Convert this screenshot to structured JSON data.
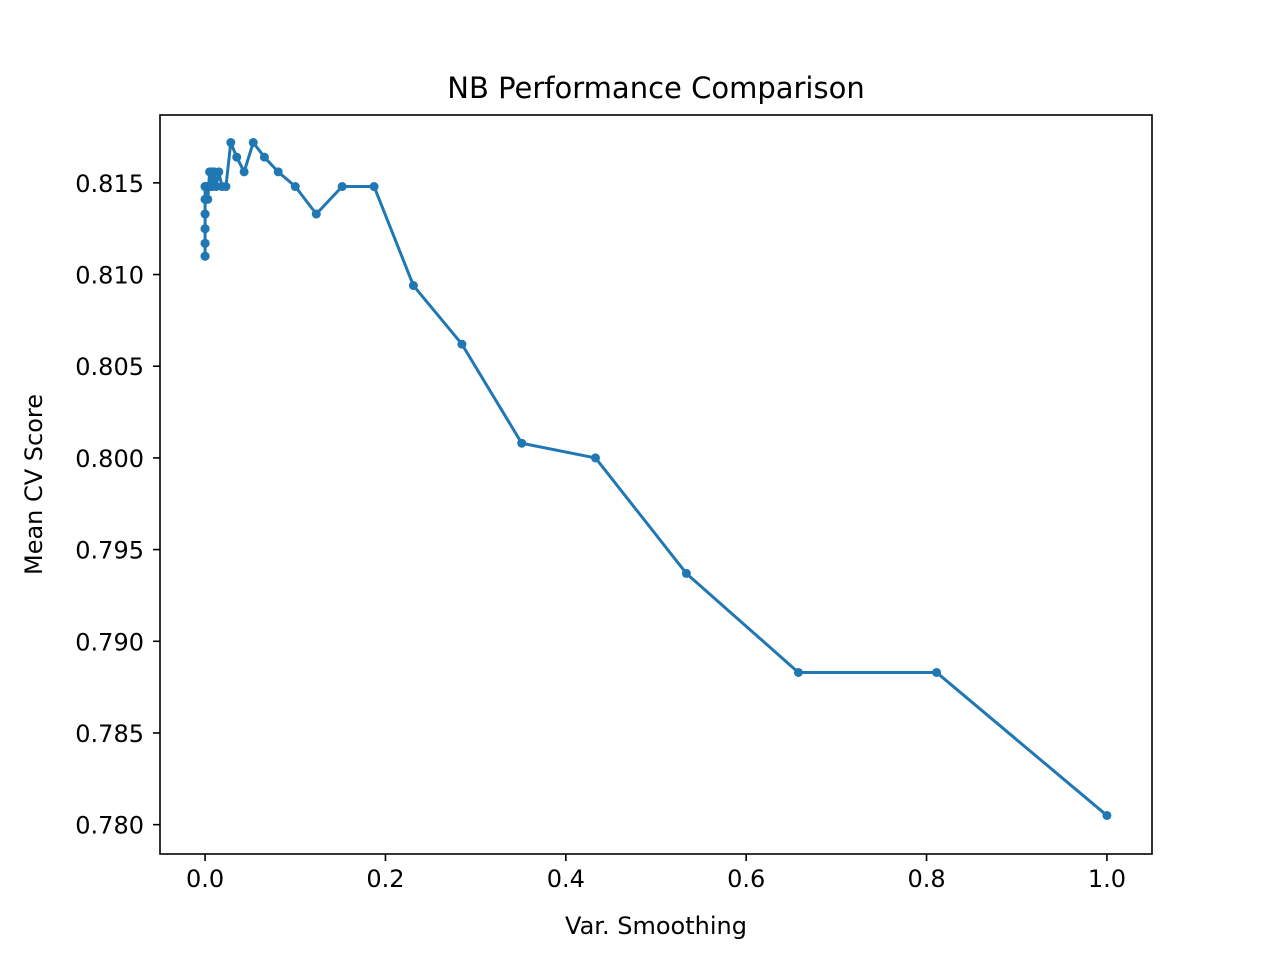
{
  "chart_data": {
    "type": "line",
    "title": "NB Performance Comparison",
    "xlabel": "Var. Smoothing",
    "ylabel": "Mean CV Score",
    "xlim": [
      -0.05,
      1.05
    ],
    "ylim": [
      0.7784,
      0.8187
    ],
    "xticks": [
      0.0,
      0.2,
      0.4,
      0.6,
      0.8,
      1.0
    ],
    "xtick_labels": [
      "0.0",
      "0.2",
      "0.4",
      "0.6",
      "0.8",
      "1.0"
    ],
    "yticks": [
      0.78,
      0.785,
      0.79,
      0.795,
      0.8,
      0.805,
      0.81,
      0.815
    ],
    "ytick_labels": [
      "0.780",
      "0.785",
      "0.790",
      "0.795",
      "0.800",
      "0.805",
      "0.810",
      "0.815"
    ],
    "grid": false,
    "legend": "none",
    "color": "#1f77b4",
    "series": [
      {
        "x": [
          0.0,
          0.0,
          0.0,
          0.0,
          0.0,
          0.0,
          0.0,
          0.0,
          0.0,
          0.0,
          0.0,
          0.0,
          0.001,
          0.0015,
          0.002,
          0.003,
          0.004,
          0.005,
          0.006,
          0.007,
          0.008,
          0.01,
          0.0123,
          0.0152,
          0.0187,
          0.0231,
          0.0285,
          0.0351,
          0.0433,
          0.0534,
          0.0658,
          0.0811,
          0.1,
          0.1233,
          0.152,
          0.1874,
          0.231,
          0.2848,
          0.3511,
          0.4329,
          0.5337,
          0.6579,
          0.8111,
          1.0
        ],
        "y": [
          0.811,
          0.811,
          0.8117,
          0.8117,
          0.8125,
          0.8125,
          0.8133,
          0.8133,
          0.8141,
          0.8141,
          0.8148,
          0.8148,
          0.8141,
          0.8148,
          0.8148,
          0.8141,
          0.8148,
          0.8156,
          0.8148,
          0.8156,
          0.8148,
          0.8156,
          0.8148,
          0.8156,
          0.8148,
          0.8148,
          0.8172,
          0.8164,
          0.8156,
          0.8172,
          0.8164,
          0.8156,
          0.8148,
          0.8133,
          0.8148,
          0.8148,
          0.8094,
          0.8062,
          0.8008,
          0.8,
          0.7937,
          0.7883,
          0.7883,
          0.7805
        ]
      }
    ]
  }
}
